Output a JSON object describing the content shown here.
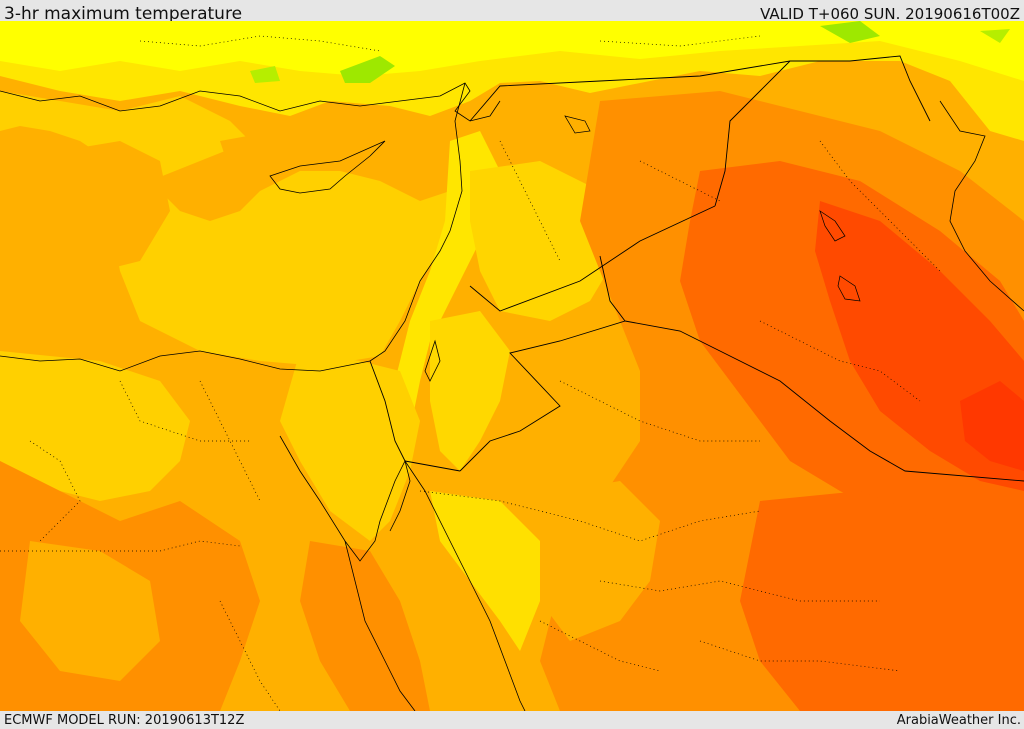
{
  "header": {
    "title": "3-hr maximum temperature",
    "valid": "VALID T+060 SUN. 20190616T00Z"
  },
  "footer": {
    "model_run": "ECMWF MODEL RUN: 20190613T12Z",
    "credit": "ArabiaWeather Inc."
  },
  "palette": {
    "pale_yellow": "#ffe600",
    "yellow": "#ffff00",
    "light_green": "#c8f000",
    "green": "#7ee80a",
    "gold": "#ffd700",
    "amber": "#ffaf00",
    "orange": "#ff8c00",
    "dark_orange": "#ff6400",
    "red_orange": "#ff4500",
    "red": "#ff2a00",
    "sea_band": "#ffc800",
    "border": "#000000"
  }
}
